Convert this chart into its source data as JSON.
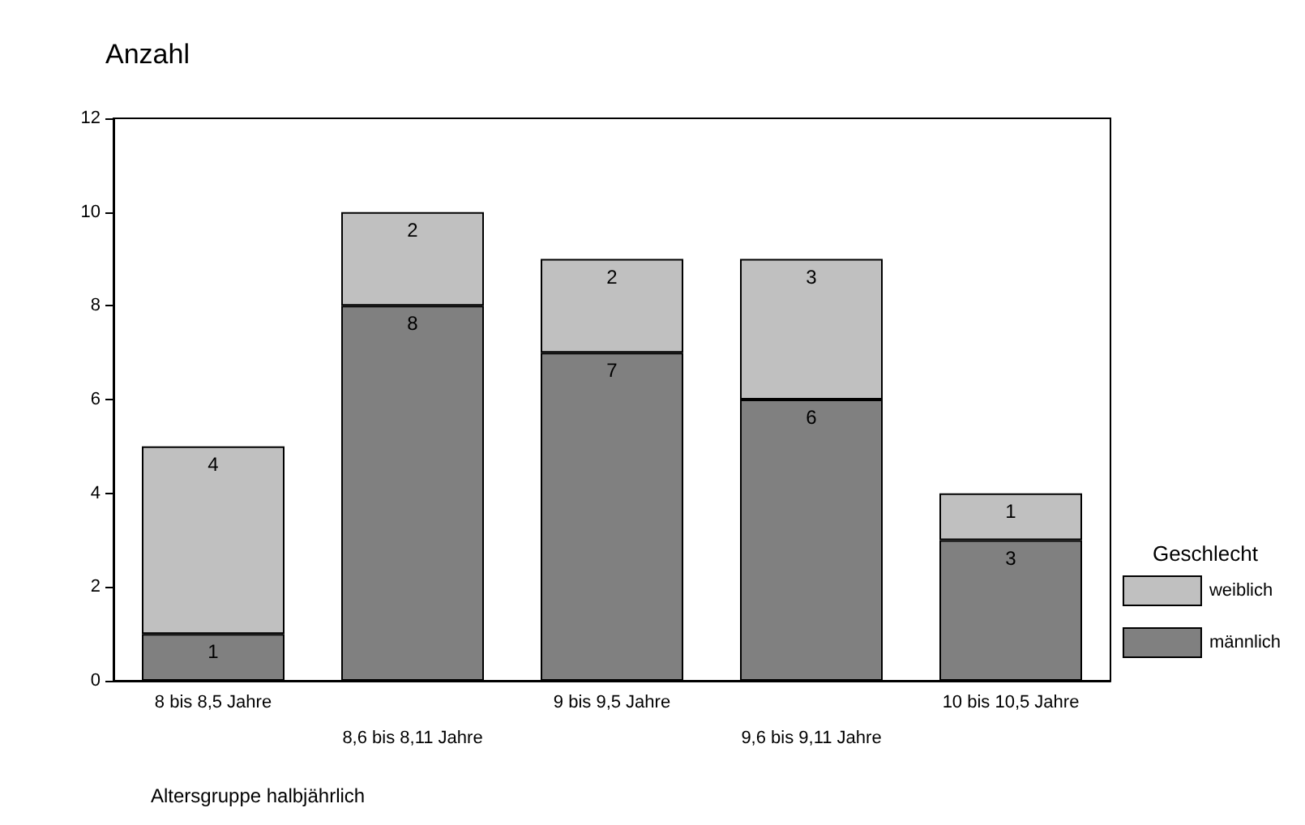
{
  "chart_data": {
    "type": "bar",
    "ylabel": "Anzahl",
    "xlabel": "Altersgruppe halbjährlich",
    "legend_title": "Geschlecht",
    "categories": [
      "8 bis 8,5 Jahre",
      "8,6 bis 8,11 Jahre",
      "9 bis 9,5 Jahre",
      "9,6 bis 9,11 Jahre",
      "10 bis 10,5 Jahre"
    ],
    "series": [
      {
        "name": "männlich",
        "color": "#808080",
        "values": [
          1,
          8,
          7,
          6,
          3
        ]
      },
      {
        "name": "weiblich",
        "color": "#c0c0c0",
        "values": [
          4,
          2,
          2,
          3,
          1
        ]
      }
    ],
    "stacked": true,
    "data_labels": true,
    "ylim": [
      0,
      12
    ],
    "yticks": [
      0,
      2,
      4,
      6,
      8,
      10,
      12
    ],
    "grid": false,
    "legend": "right"
  }
}
